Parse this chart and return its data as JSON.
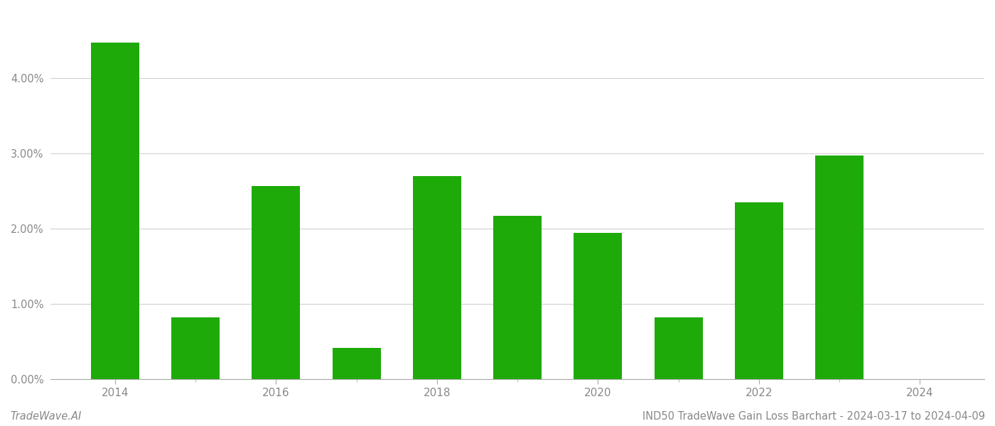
{
  "years": [
    2014,
    2015,
    2016,
    2017,
    2018,
    2019,
    2020,
    2021,
    2022,
    2023,
    2024
  ],
  "values": [
    0.0448,
    0.0082,
    0.0257,
    0.0042,
    0.027,
    0.0217,
    0.0195,
    0.0082,
    0.0235,
    0.0297,
    0.0
  ],
  "bar_color": "#1eaa08",
  "background_color": "#ffffff",
  "ylim": [
    0,
    0.049
  ],
  "yticks": [
    0.0,
    0.01,
    0.02,
    0.03,
    0.04
  ],
  "xtick_major": [
    2014,
    2016,
    2018,
    2020,
    2022,
    2024
  ],
  "xtick_minor": [
    2014,
    2015,
    2016,
    2017,
    2018,
    2019,
    2020,
    2021,
    2022,
    2023,
    2024
  ],
  "grid_color": "#d0d0d0",
  "tick_color": "#888888",
  "bar_width": 0.6,
  "xlim_left": 2013.2,
  "xlim_right": 2024.8,
  "footer_left": "TradeWave.AI",
  "footer_right": "IND50 TradeWave Gain Loss Barchart - 2024-03-17 to 2024-04-09",
  "footer_fontsize": 10.5
}
